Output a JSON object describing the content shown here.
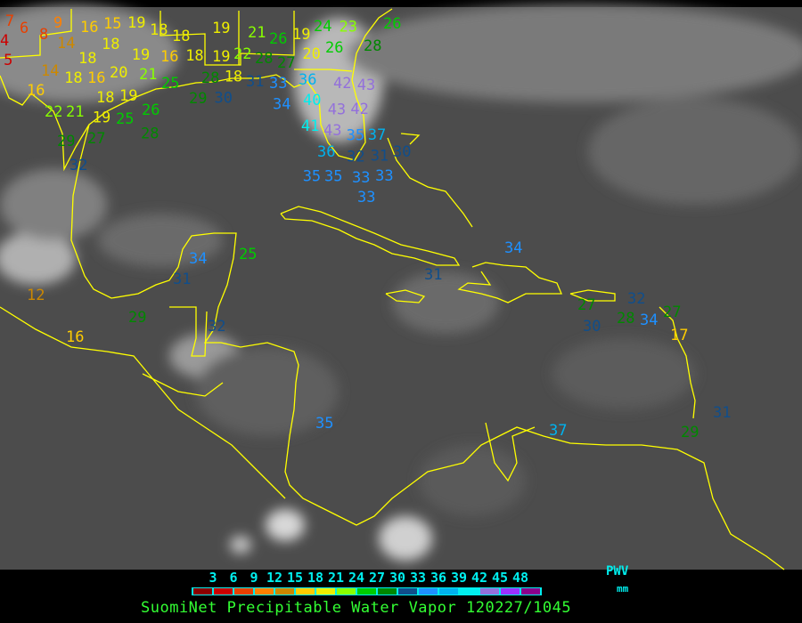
{
  "title": "SuomiNet Precipitable Water Vapor 120227/1045",
  "legend": {
    "label": "PWV",
    "unit": "mm",
    "ticks": [
      "3",
      "6",
      "9",
      "12",
      "15",
      "18",
      "21",
      "24",
      "27",
      "30",
      "33",
      "36",
      "39",
      "42",
      "45",
      "48"
    ],
    "colors": [
      "#8b0000",
      "#cc0000",
      "#e84000",
      "#ff8000",
      "#cc8800",
      "#ffcc00",
      "#eeee00",
      "#88ff00",
      "#00cc00",
      "#008800",
      "#104e8b",
      "#1e90ff",
      "#00b2ee",
      "#00eeee",
      "#9370db",
      "#9b30ff",
      "#8b008b"
    ]
  },
  "coastline_color": "#ffff00",
  "stations": [
    "4",
    "7",
    "6",
    "8",
    "9",
    "16",
    "15",
    "19",
    "18",
    "18",
    "18",
    "14",
    "18",
    "5",
    "14",
    "18",
    "16",
    "20",
    "21",
    "19",
    "19",
    "18",
    "16",
    "22",
    "21",
    "19",
    "25",
    "26",
    "28",
    "25",
    "16",
    "18",
    "19",
    "22",
    "28",
    "27",
    "26",
    "21",
    "19",
    "20",
    "19",
    "18",
    "28",
    "29",
    "30",
    "31",
    "33",
    "34",
    "36",
    "26",
    "24",
    "23",
    "28",
    "26",
    "42",
    "40",
    "43",
    "42",
    "43",
    "43",
    "41",
    "36",
    "35",
    "37",
    "32",
    "31",
    "30",
    "35",
    "35",
    "33",
    "33",
    "33",
    "32",
    "29",
    "27",
    "34",
    "25",
    "31",
    "12",
    "29",
    "16",
    "32",
    "35",
    "34",
    "31",
    "27",
    "30",
    "32",
    "28",
    "34",
    "27",
    "17",
    "31",
    "29",
    "37"
  ]
}
